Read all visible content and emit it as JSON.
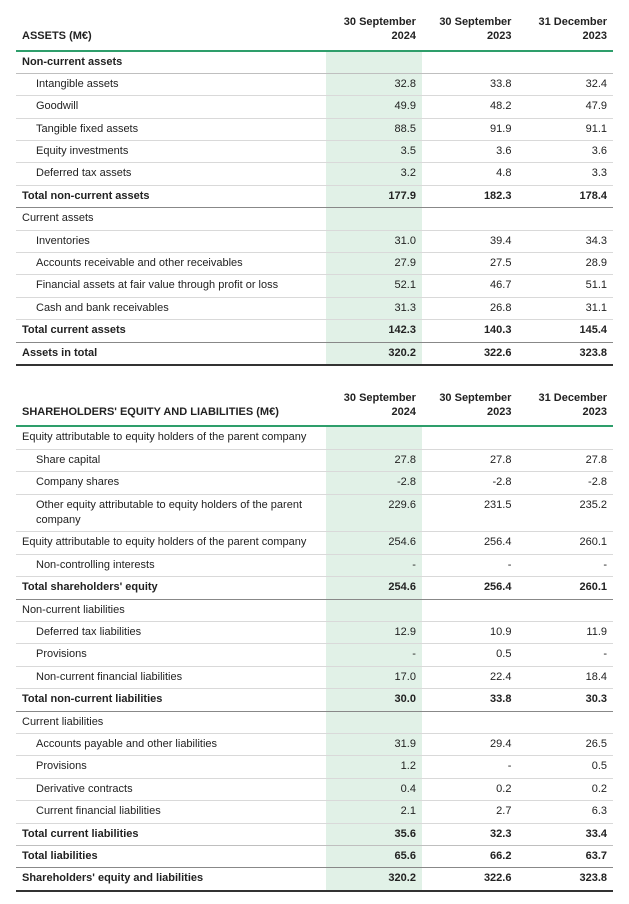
{
  "colors": {
    "accent": "#2e9e6b",
    "highlight_bg": "#e1f1e7",
    "row_border": "#d9d9d9",
    "strong_border": "#888888",
    "grand_border": "#333333",
    "text": "#222222",
    "background": "#ffffff"
  },
  "typography": {
    "base_font_size_pt": 8,
    "font_family": "Segoe UI / Helvetica Neue / Arial",
    "header_weight": 600,
    "total_weight": 700
  },
  "tables": {
    "assets": {
      "type": "table",
      "title": "ASSETS (M€)",
      "columns": [
        "30 September 2024",
        "30 September 2023",
        "31 December 2023"
      ],
      "highlight_column_index": 0,
      "column_widths_pct": [
        52,
        16,
        16,
        16
      ],
      "rows": [
        {
          "style": "section",
          "label": "Non-current assets",
          "values": [
            "",
            "",
            ""
          ]
        },
        {
          "style": "indent",
          "label": "Intangible assets",
          "values": [
            "32.8",
            "33.8",
            "32.4"
          ]
        },
        {
          "style": "indent",
          "label": "Goodwill",
          "values": [
            "49.9",
            "48.2",
            "47.9"
          ]
        },
        {
          "style": "indent",
          "label": "Tangible fixed assets",
          "values": [
            "88.5",
            "91.9",
            "91.1"
          ]
        },
        {
          "style": "indent",
          "label": "Equity investments",
          "values": [
            "3.5",
            "3.6",
            "3.6"
          ]
        },
        {
          "style": "indent",
          "label": "Deferred tax assets",
          "values": [
            "3.2",
            "4.8",
            "3.3"
          ]
        },
        {
          "style": "total",
          "label": "Total non-current assets",
          "values": [
            "177.9",
            "182.3",
            "178.4"
          ]
        },
        {
          "style": "section-plain",
          "label": "Current assets",
          "values": [
            "",
            "",
            ""
          ]
        },
        {
          "style": "indent",
          "label": "Inventories",
          "values": [
            "31.0",
            "39.4",
            "34.3"
          ]
        },
        {
          "style": "indent",
          "label": "Accounts receivable and other receivables",
          "values": [
            "27.9",
            "27.5",
            "28.9"
          ]
        },
        {
          "style": "indent",
          "label": "Financial assets at fair value through profit or loss",
          "values": [
            "52.1",
            "46.7",
            "51.1"
          ]
        },
        {
          "style": "indent",
          "label": "Cash and bank receivables",
          "values": [
            "31.3",
            "26.8",
            "31.1"
          ]
        },
        {
          "style": "total",
          "label": "Total current assets",
          "values": [
            "142.3",
            "140.3",
            "145.4"
          ]
        },
        {
          "style": "grand",
          "label": "Assets in total",
          "values": [
            "320.2",
            "322.6",
            "323.8"
          ]
        }
      ]
    },
    "equity": {
      "type": "table",
      "title": "SHAREHOLDERS' EQUITY AND LIABILITIES (M€)",
      "columns": [
        "30 September 2024",
        "30 September 2023",
        "31 December 2023"
      ],
      "highlight_column_index": 0,
      "column_widths_pct": [
        52,
        16,
        16,
        16
      ],
      "rows": [
        {
          "style": "section-plain",
          "label": "Equity attributable to equity holders of the parent company",
          "values": [
            "",
            "",
            ""
          ]
        },
        {
          "style": "indent",
          "label": "Share capital",
          "values": [
            "27.8",
            "27.8",
            "27.8"
          ]
        },
        {
          "style": "indent",
          "label": "Company shares",
          "values": [
            "-2.8",
            "-2.8",
            "-2.8"
          ]
        },
        {
          "style": "indent",
          "label": "Other equity attributable to equity holders of the parent company",
          "values": [
            "229.6",
            "231.5",
            "235.2"
          ]
        },
        {
          "style": "plain",
          "label": "Equity attributable to equity holders of the parent company",
          "values": [
            "254.6",
            "256.4",
            "260.1"
          ]
        },
        {
          "style": "indent",
          "label": "Non-controlling interests",
          "values": [
            "-",
            "-",
            "-"
          ]
        },
        {
          "style": "total",
          "label": "Total shareholders' equity",
          "values": [
            "254.6",
            "256.4",
            "260.1"
          ]
        },
        {
          "style": "section-plain",
          "label": "Non-current liabilities",
          "values": [
            "",
            "",
            ""
          ]
        },
        {
          "style": "indent",
          "label": "Deferred tax liabilities",
          "values": [
            "12.9",
            "10.9",
            "11.9"
          ]
        },
        {
          "style": "indent",
          "label": "Provisions",
          "values": [
            "-",
            "0.5",
            "-"
          ]
        },
        {
          "style": "indent",
          "label": "Non-current financial liabilities",
          "values": [
            "17.0",
            "22.4",
            "18.4"
          ]
        },
        {
          "style": "total",
          "label": "Total non-current liabilities",
          "values": [
            "30.0",
            "33.8",
            "30.3"
          ]
        },
        {
          "style": "section-plain",
          "label": "Current liabilities",
          "values": [
            "",
            "",
            ""
          ]
        },
        {
          "style": "indent",
          "label": "Accounts payable and other liabilities",
          "values": [
            "31.9",
            "29.4",
            "26.5"
          ]
        },
        {
          "style": "indent",
          "label": "Provisions",
          "values": [
            "1.2",
            "-",
            "0.5"
          ]
        },
        {
          "style": "indent",
          "label": "Derivative contracts",
          "values": [
            "0.4",
            "0.2",
            "0.2"
          ]
        },
        {
          "style": "indent",
          "label": "Current financial liabilities",
          "values": [
            "2.1",
            "2.7",
            "6.3"
          ]
        },
        {
          "style": "total-light",
          "label": "Total current liabilities",
          "values": [
            "35.6",
            "32.3",
            "33.4"
          ]
        },
        {
          "style": "total",
          "label": "Total liabilities",
          "values": [
            "65.6",
            "66.2",
            "63.7"
          ]
        },
        {
          "style": "grand",
          "label": "Shareholders' equity and liabilities",
          "values": [
            "320.2",
            "322.6",
            "323.8"
          ]
        }
      ]
    }
  }
}
